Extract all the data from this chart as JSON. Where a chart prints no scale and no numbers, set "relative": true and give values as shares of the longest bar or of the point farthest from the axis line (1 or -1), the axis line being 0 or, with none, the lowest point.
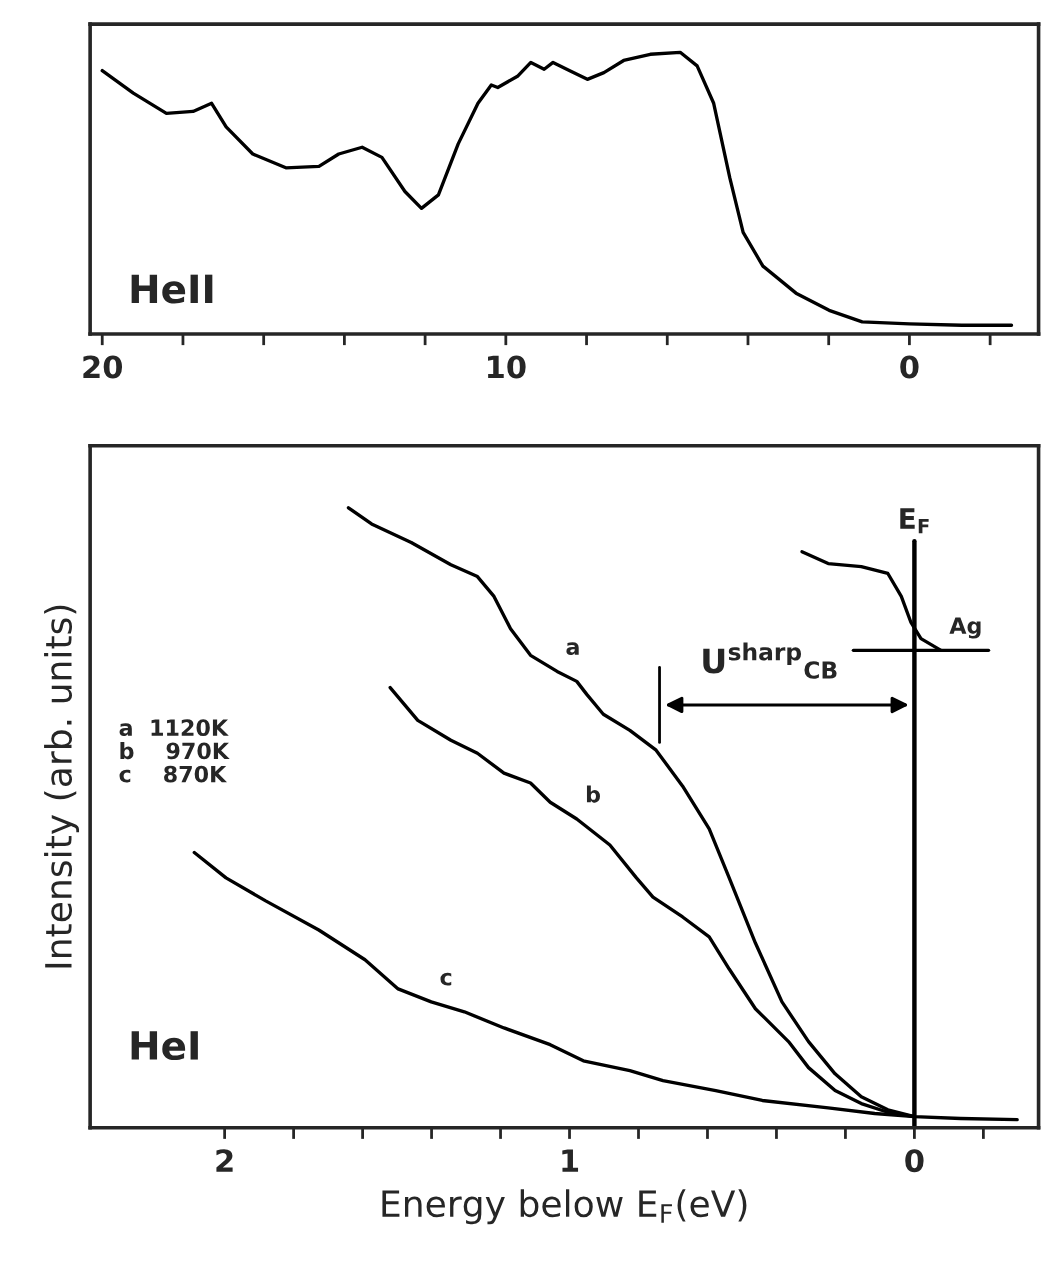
{
  "chart_data": [
    {
      "type": "line",
      "relative": true,
      "tick_labels": "x",
      "xlim": [
        20.3,
        -3.2
      ],
      "xticks": [
        20,
        {
          "value": 18,
          "label": null
        },
        {
          "value": 16,
          "label": null
        },
        {
          "value": 14,
          "label": null
        },
        {
          "value": 12,
          "label": null
        },
        10,
        {
          "value": 8,
          "label": null
        },
        {
          "value": 6,
          "label": null
        },
        {
          "value": 4,
          "label": null
        },
        {
          "value": 2,
          "label": null
        },
        0,
        {
          "value": -2,
          "label": null
        }
      ],
      "annotations": [
        "HeII"
      ],
      "series": [
        {
          "color": "#000000",
          "x": [
            20,
            19.23,
            18.41,
            17.75,
            17.29,
            16.93,
            16.27,
            15.45,
            14.63,
            14.14,
            13.56,
            13.07,
            12.5,
            12.09,
            11.67,
            11.18,
            10.69,
            10.36,
            10.2,
            9.7,
            9.38,
            9.05,
            8.83,
            8.39,
            7.98,
            7.57,
            7.08,
            6.42,
            5.68,
            5.26,
            4.85,
            4.45,
            4.12,
            3.63,
            2.81,
            1.99,
            1.17,
            0,
            -1.3,
            -2.53
          ],
          "values": [
            0.935,
            0.855,
            0.783,
            0.79,
            0.819,
            0.735,
            0.639,
            0.59,
            0.595,
            0.639,
            0.663,
            0.627,
            0.506,
            0.446,
            0.494,
            0.675,
            0.819,
            0.884,
            0.875,
            0.916,
            0.964,
            0.94,
            0.964,
            0.933,
            0.904,
            0.928,
            0.971,
            0.993,
            1.0,
            0.952,
            0.819,
            0.554,
            0.361,
            0.241,
            0.145,
            0.084,
            0.043,
            0.036,
            0.031,
            0.031
          ]
        }
      ]
    },
    {
      "type": "line",
      "relative": true,
      "tick_labels": "x",
      "xlim": [
        2.39,
        -0.36
      ],
      "xticks": [
        2,
        {
          "value": 1.8,
          "label": null
        },
        {
          "value": 1.6,
          "label": null
        },
        {
          "value": 1.4,
          "label": null
        },
        {
          "value": 1.2,
          "label": null
        },
        1,
        {
          "value": 0.8,
          "label": null
        },
        {
          "value": 0.6,
          "label": null
        },
        {
          "value": 0.4,
          "label": null
        },
        {
          "value": 0.2,
          "label": null
        },
        0,
        {
          "value": -0.2,
          "label": null
        }
      ],
      "xlabel": "Energy below E$_{F}$(eV)",
      "ylabel": "Intensity (arb. units)",
      "ref_lines": [
        {
          "axis": "x",
          "value": 0,
          "label": "E$_{F}$"
        },
        {
          "axis": "x",
          "value": 0.739
        }
      ],
      "annotations": [
        "a  1120K\nb    970K\nc    870K",
        "HeI",
        "U$^{sharp}$$_{CB}$"
      ],
      "series": [
        {
          "name": "a",
          "color": "#000000",
          "x": [
            1.641,
            1.574,
            1.459,
            1.344,
            1.267,
            1.219,
            1.171,
            1.113,
            1.036,
            0.979,
            0.95,
            0.902,
            0.825,
            0.749,
            0.672,
            0.595,
            0.537,
            0.461,
            0.384,
            0.307,
            0.23,
            0.154,
            0.077,
            0
          ],
          "values": [
            1.0,
            0.974,
            0.944,
            0.908,
            0.889,
            0.857,
            0.805,
            0.762,
            0.736,
            0.72,
            0.699,
            0.667,
            0.641,
            0.609,
            0.551,
            0.482,
            0.403,
            0.298,
            0.203,
            0.139,
            0.087,
            0.05,
            0.029,
            0.018
          ]
        },
        {
          "name": "b",
          "color": "#000000",
          "x": [
            1.52,
            1.44,
            1.344,
            1.267,
            1.19,
            1.113,
            1.056,
            0.979,
            0.883,
            0.806,
            0.758,
            0.672,
            0.595,
            0.537,
            0.461,
            0.365,
            0.307,
            0.23,
            0.154,
            0.077,
            0
          ],
          "values": [
            0.71,
            0.657,
            0.625,
            0.604,
            0.572,
            0.556,
            0.525,
            0.498,
            0.456,
            0.403,
            0.372,
            0.34,
            0.308,
            0.256,
            0.192,
            0.139,
            0.097,
            0.06,
            0.039,
            0.025,
            0.018
          ]
        },
        {
          "name": "c",
          "color": "#000000",
          "x": [
            2.088,
            1.996,
            1.881,
            1.727,
            1.593,
            1.497,
            1.401,
            1.305,
            1.19,
            1.056,
            0.96,
            0.825,
            0.729,
            0.576,
            0.441,
            0.25,
            0.115,
            0,
            -0.134,
            -0.298
          ],
          "values": [
            0.444,
            0.403,
            0.366,
            0.319,
            0.271,
            0.224,
            0.203,
            0.187,
            0.161,
            0.134,
            0.108,
            0.092,
            0.076,
            0.06,
            0.044,
            0.032,
            0.023,
            0.018,
            0.015,
            0.013
          ]
        },
        {
          "name": "Ag",
          "color": "#000000",
          "x": [
            0.326,
            0.25,
            0.154,
            0.077,
            0.038,
            0.01,
            -0.019,
            -0.077
          ],
          "values": [
            0.929,
            0.91,
            0.905,
            0.894,
            0.857,
            0.815,
            0.789,
            0.77
          ]
        },
        {
          "color": "#000000",
          "x": [
            0.177,
            -0.215
          ],
          "values": [
            0.77,
            0.77
          ]
        }
      ]
    }
  ]
}
